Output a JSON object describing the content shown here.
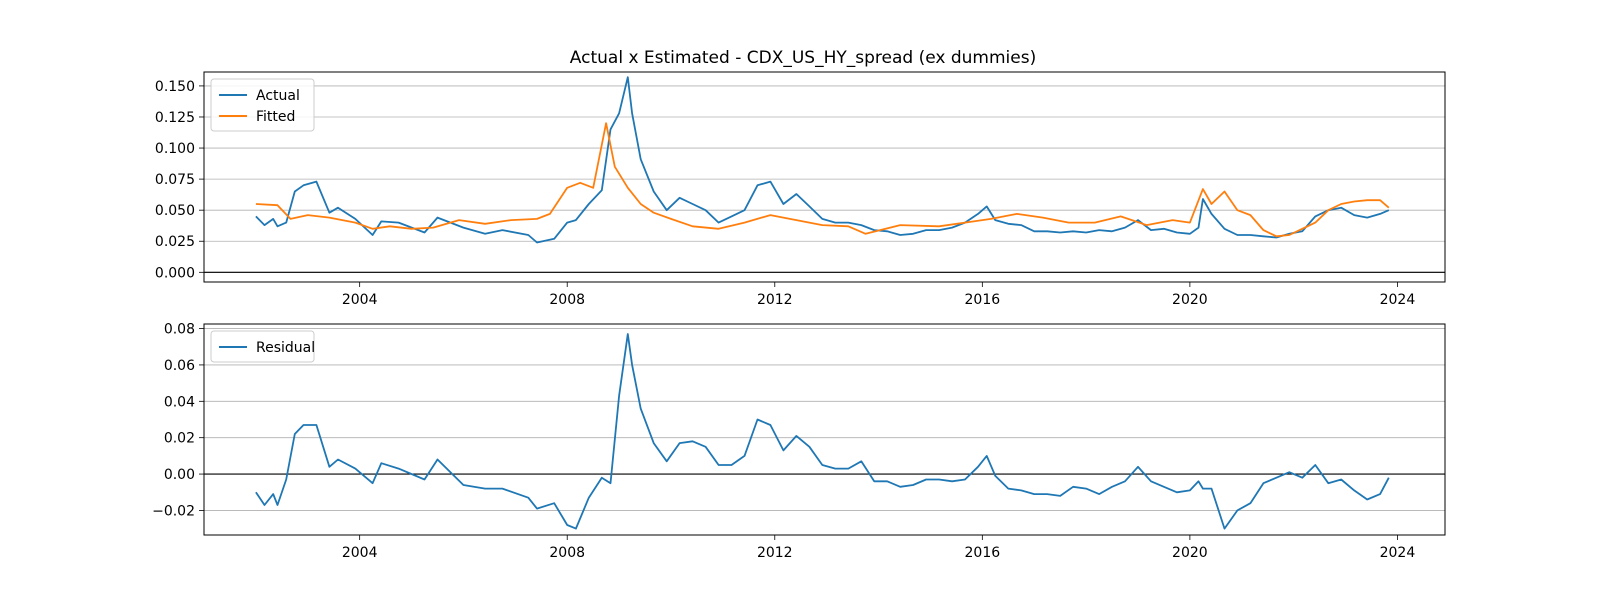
{
  "title": "Actual x Estimated - CDX_US_HY_spread (ex dummies)",
  "colors": {
    "actual": "#1f77b4",
    "fitted": "#ff7f0e",
    "residual": "#1f77b4",
    "grid": "#b0b0b0",
    "zero_line": "#000000"
  },
  "chart_data": [
    {
      "type": "line",
      "title": "Actual x Estimated - CDX_US_HY_spread (ex dummies)",
      "xlabel": "",
      "ylabel": "",
      "x_type": "date",
      "xlim": [
        "2001-01-01",
        "2024-12-01"
      ],
      "ylim": [
        -0.0078,
        0.1612
      ],
      "x_ticks": [
        "2004",
        "2008",
        "2012",
        "2016",
        "2020",
        "2024"
      ],
      "y_ticks": [
        "0.000",
        "0.025",
        "0.050",
        "0.075",
        "0.100",
        "0.125",
        "0.150"
      ],
      "grid": "horizontal",
      "legend": "upper left",
      "zero_line": true,
      "series": [
        {
          "name": "Actual",
          "x": [
            "2002-01-01",
            "2002-03-01",
            "2002-05-01",
            "2002-06-01",
            "2002-08-01",
            "2002-10-01",
            "2002-12-01",
            "2003-03-01",
            "2003-06-01",
            "2003-08-01",
            "2003-12-01",
            "2004-04-01",
            "2004-06-01",
            "2004-10-01",
            "2005-04-01",
            "2005-07-01",
            "2006-01-01",
            "2006-06-01",
            "2006-10-01",
            "2007-04-01",
            "2007-06-01",
            "2007-10-01",
            "2008-01-01",
            "2008-03-01",
            "2008-06-01",
            "2008-09-01",
            "2008-11-01",
            "2009-01-01",
            "2009-03-01",
            "2009-04-01",
            "2009-06-01",
            "2009-09-01",
            "2009-12-01",
            "2010-03-01",
            "2010-06-01",
            "2010-09-01",
            "2010-12-01",
            "2011-03-01",
            "2011-06-01",
            "2011-09-01",
            "2011-12-01",
            "2012-03-01",
            "2012-06-01",
            "2012-09-01",
            "2012-12-01",
            "2013-03-01",
            "2013-06-01",
            "2013-09-01",
            "2013-12-01",
            "2014-03-01",
            "2014-06-01",
            "2014-09-01",
            "2014-12-01",
            "2015-03-01",
            "2015-06-01",
            "2015-09-01",
            "2015-12-01",
            "2016-02-01",
            "2016-04-01",
            "2016-07-01",
            "2016-10-01",
            "2017-01-01",
            "2017-04-01",
            "2017-07-01",
            "2017-10-01",
            "2018-01-01",
            "2018-04-01",
            "2018-07-01",
            "2018-10-01",
            "2019-01-01",
            "2019-04-01",
            "2019-07-01",
            "2019-10-01",
            "2020-01-01",
            "2020-03-01",
            "2020-04-01",
            "2020-06-01",
            "2020-09-01",
            "2020-12-01",
            "2021-03-01",
            "2021-06-01",
            "2021-09-01",
            "2021-12-01",
            "2022-03-01",
            "2022-06-01",
            "2022-09-01",
            "2022-12-01",
            "2023-03-01",
            "2023-06-01",
            "2023-09-01",
            "2023-11-01"
          ],
          "values": [
            0.045,
            0.038,
            0.043,
            0.037,
            0.04,
            0.065,
            0.07,
            0.073,
            0.048,
            0.052,
            0.043,
            0.03,
            0.041,
            0.04,
            0.032,
            0.044,
            0.036,
            0.031,
            0.034,
            0.03,
            0.024,
            0.027,
            0.04,
            0.042,
            0.055,
            0.066,
            0.115,
            0.128,
            0.157,
            0.128,
            0.091,
            0.065,
            0.05,
            0.06,
            0.055,
            0.05,
            0.04,
            0.045,
            0.05,
            0.07,
            0.073,
            0.055,
            0.063,
            0.053,
            0.043,
            0.04,
            0.04,
            0.038,
            0.034,
            0.033,
            0.03,
            0.031,
            0.034,
            0.034,
            0.036,
            0.04,
            0.047,
            0.053,
            0.042,
            0.039,
            0.038,
            0.033,
            0.033,
            0.032,
            0.033,
            0.032,
            0.034,
            0.033,
            0.036,
            0.042,
            0.034,
            0.035,
            0.032,
            0.031,
            0.036,
            0.059,
            0.047,
            0.035,
            0.03,
            0.03,
            0.029,
            0.028,
            0.031,
            0.033,
            0.045,
            0.05,
            0.052,
            0.046,
            0.044,
            0.047,
            0.05
          ]
        },
        {
          "name": "Fitted",
          "x": [
            "2002-01-01",
            "2002-06-01",
            "2002-09-01",
            "2003-01-01",
            "2003-06-01",
            "2003-12-01",
            "2004-04-01",
            "2004-08-01",
            "2005-01-01",
            "2005-06-01",
            "2005-12-01",
            "2006-06-01",
            "2006-12-01",
            "2007-06-01",
            "2007-09-01",
            "2008-01-01",
            "2008-04-01",
            "2008-07-01",
            "2008-10-01",
            "2008-12-01",
            "2009-03-01",
            "2009-06-01",
            "2009-09-01",
            "2010-01-01",
            "2010-06-01",
            "2010-12-01",
            "2011-06-01",
            "2011-12-01",
            "2012-06-01",
            "2012-12-01",
            "2013-06-01",
            "2013-10-01",
            "2014-06-01",
            "2015-03-01",
            "2015-09-01",
            "2016-03-01",
            "2016-09-01",
            "2017-03-01",
            "2017-09-01",
            "2018-03-01",
            "2018-09-01",
            "2019-03-01",
            "2019-09-01",
            "2020-01-01",
            "2020-04-01",
            "2020-06-01",
            "2020-09-01",
            "2020-12-01",
            "2021-03-01",
            "2021-06-01",
            "2021-09-01",
            "2021-12-01",
            "2022-03-01",
            "2022-06-01",
            "2022-09-01",
            "2022-12-01",
            "2023-03-01",
            "2023-06-01",
            "2023-09-01",
            "2023-11-01"
          ],
          "values": [
            0.055,
            0.054,
            0.043,
            0.046,
            0.044,
            0.04,
            0.035,
            0.037,
            0.035,
            0.036,
            0.042,
            0.039,
            0.042,
            0.043,
            0.047,
            0.068,
            0.072,
            0.068,
            0.12,
            0.085,
            0.068,
            0.055,
            0.048,
            0.043,
            0.037,
            0.035,
            0.04,
            0.046,
            0.042,
            0.038,
            0.037,
            0.031,
            0.038,
            0.037,
            0.04,
            0.043,
            0.047,
            0.044,
            0.04,
            0.04,
            0.045,
            0.038,
            0.042,
            0.04,
            0.067,
            0.055,
            0.065,
            0.05,
            0.046,
            0.034,
            0.029,
            0.03,
            0.035,
            0.04,
            0.05,
            0.055,
            0.057,
            0.058,
            0.058,
            0.052
          ]
        }
      ]
    },
    {
      "type": "line",
      "title": "",
      "xlabel": "",
      "ylabel": "",
      "x_type": "date",
      "xlim": [
        "2001-01-01",
        "2024-12-01"
      ],
      "ylim": [
        -0.0335,
        0.0825
      ],
      "x_ticks": [
        "2004",
        "2008",
        "2012",
        "2016",
        "2020",
        "2024"
      ],
      "y_ticks": [
        "−0.02",
        "0.00",
        "0.02",
        "0.04",
        "0.06",
        "0.08"
      ],
      "grid": "horizontal",
      "legend": "upper left",
      "zero_line": true,
      "series": [
        {
          "name": "Residual",
          "x": [
            "2002-01-01",
            "2002-03-01",
            "2002-05-01",
            "2002-06-01",
            "2002-08-01",
            "2002-10-01",
            "2002-12-01",
            "2003-03-01",
            "2003-06-01",
            "2003-08-01",
            "2003-12-01",
            "2004-04-01",
            "2004-06-01",
            "2004-10-01",
            "2005-04-01",
            "2005-07-01",
            "2006-01-01",
            "2006-06-01",
            "2006-10-01",
            "2007-04-01",
            "2007-06-01",
            "2007-10-01",
            "2008-01-01",
            "2008-03-01",
            "2008-06-01",
            "2008-09-01",
            "2008-11-01",
            "2009-01-01",
            "2009-03-01",
            "2009-04-01",
            "2009-06-01",
            "2009-09-01",
            "2009-12-01",
            "2010-03-01",
            "2010-06-01",
            "2010-09-01",
            "2010-12-01",
            "2011-03-01",
            "2011-06-01",
            "2011-09-01",
            "2011-12-01",
            "2012-03-01",
            "2012-06-01",
            "2012-09-01",
            "2012-12-01",
            "2013-03-01",
            "2013-06-01",
            "2013-09-01",
            "2013-12-01",
            "2014-03-01",
            "2014-06-01",
            "2014-09-01",
            "2014-12-01",
            "2015-03-01",
            "2015-06-01",
            "2015-09-01",
            "2015-12-01",
            "2016-02-01",
            "2016-04-01",
            "2016-07-01",
            "2016-10-01",
            "2017-01-01",
            "2017-04-01",
            "2017-07-01",
            "2017-10-01",
            "2018-01-01",
            "2018-04-01",
            "2018-07-01",
            "2018-10-01",
            "2019-01-01",
            "2019-04-01",
            "2019-07-01",
            "2019-10-01",
            "2020-01-01",
            "2020-03-01",
            "2020-04-01",
            "2020-06-01",
            "2020-09-01",
            "2020-12-01",
            "2021-03-01",
            "2021-06-01",
            "2021-09-01",
            "2021-12-01",
            "2022-03-01",
            "2022-06-01",
            "2022-09-01",
            "2022-12-01",
            "2023-03-01",
            "2023-06-01",
            "2023-09-01",
            "2023-11-01"
          ],
          "values": [
            -0.01,
            -0.017,
            -0.011,
            -0.017,
            -0.003,
            0.022,
            0.027,
            0.027,
            0.004,
            0.008,
            0.003,
            -0.005,
            0.006,
            0.003,
            -0.003,
            0.008,
            -0.006,
            -0.008,
            -0.008,
            -0.013,
            -0.019,
            -0.016,
            -0.028,
            -0.03,
            -0.013,
            -0.002,
            -0.005,
            0.043,
            0.077,
            0.06,
            0.036,
            0.017,
            0.007,
            0.017,
            0.018,
            0.015,
            0.005,
            0.005,
            0.01,
            0.03,
            0.027,
            0.013,
            0.021,
            0.015,
            0.005,
            0.003,
            0.003,
            0.007,
            -0.004,
            -0.004,
            -0.007,
            -0.006,
            -0.003,
            -0.003,
            -0.004,
            -0.003,
            0.004,
            0.01,
            -0.001,
            -0.008,
            -0.009,
            -0.011,
            -0.011,
            -0.012,
            -0.007,
            -0.008,
            -0.011,
            -0.007,
            -0.004,
            0.004,
            -0.004,
            -0.007,
            -0.01,
            -0.009,
            -0.004,
            -0.008,
            -0.008,
            -0.03,
            -0.02,
            -0.016,
            -0.005,
            -0.002,
            0.001,
            -0.002,
            0.005,
            -0.005,
            -0.003,
            -0.009,
            -0.014,
            -0.011,
            -0.002
          ]
        }
      ]
    }
  ]
}
